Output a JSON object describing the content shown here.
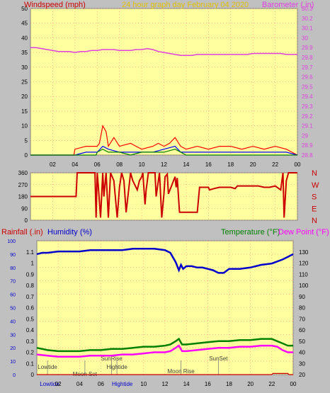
{
  "colors": {
    "plot_bg": "#ffff9f",
    "frame_bg": "#c0c0c0",
    "grid": "#ff8080",
    "tick": "#ff0000",
    "wind_gust": "#ff0000",
    "wind_speed": "#0000ff",
    "wind_avg": "#008000",
    "barometer": "#e040e0",
    "direction": "#cc0000",
    "humidity": "#0000cc",
    "temperature": "#008000",
    "dewpoint": "#ff00ff",
    "rainfall": "#cc0000",
    "title": "#e0c000",
    "panel_labels": "#404040"
  },
  "chart_data": [
    {
      "type": "line",
      "title": "24 hour graph day   February 04 2020",
      "ylabel_left": "Windspeed (mph)",
      "ylabel_right": "Barometer (.in)",
      "xlim": [
        0,
        24
      ],
      "x_tick_labels": [
        "02",
        "04",
        "06",
        "08",
        "10",
        "12",
        "14",
        "16",
        "18",
        "20",
        "22",
        "00"
      ],
      "ylim_left": [
        0,
        50
      ],
      "y_ticks_left": [
        0,
        5,
        10,
        15,
        20,
        25,
        30,
        35,
        40,
        45,
        50
      ],
      "ylim_right": [
        28.8,
        30.3
      ],
      "y_ticks_right": [
        "28.8",
        "28.9",
        "29",
        "29.1",
        "29.2",
        "29.3",
        "29.4",
        "29.5",
        "29.6",
        "29.7",
        "29.8",
        "29.9",
        "30",
        "30.1",
        "30.2",
        "30.3"
      ],
      "series": [
        {
          "id": "barometer",
          "axis": "right",
          "x": [
            0,
            0.5,
            1,
            1.5,
            2,
            2.5,
            3,
            3.5,
            4,
            4.5,
            5,
            5.5,
            6,
            6.5,
            7,
            7.5,
            8,
            8.5,
            9,
            9.5,
            10,
            10.5,
            11,
            11.5,
            12,
            12.5,
            13,
            13.5,
            14,
            14.5,
            15,
            15.5,
            16,
            16.5,
            17,
            17.5,
            18,
            18.5,
            19,
            19.5,
            20,
            20.5,
            21,
            21.5,
            22,
            22.5,
            23,
            23.5,
            24
          ],
          "y": [
            29.9,
            29.9,
            29.89,
            29.88,
            29.87,
            29.86,
            29.86,
            29.86,
            29.85,
            29.86,
            29.86,
            29.87,
            29.87,
            29.88,
            29.88,
            29.88,
            29.87,
            29.87,
            29.87,
            29.88,
            29.88,
            29.89,
            29.88,
            29.86,
            29.85,
            29.84,
            29.83,
            29.82,
            29.82,
            29.82,
            29.83,
            29.83,
            29.83,
            29.83,
            29.83,
            29.83,
            29.83,
            29.83,
            29.83,
            29.83,
            29.84,
            29.84,
            29.84,
            29.84,
            29.84,
            29.84,
            29.83,
            29.83,
            29.83
          ]
        },
        {
          "id": "wind_gust",
          "axis": "left",
          "x": [
            0,
            3.9,
            4,
            5,
            6,
            6.2,
            6.5,
            6.8,
            7,
            7.5,
            8,
            9,
            9.5,
            10,
            11,
            11.5,
            12,
            12.5,
            13,
            13.5,
            14,
            15,
            16,
            17,
            18,
            19,
            20,
            21,
            22,
            23,
            24
          ],
          "y": [
            0,
            0,
            2,
            3,
            3,
            4,
            10,
            8,
            3,
            6,
            3,
            4,
            3,
            2,
            3,
            4,
            3,
            4,
            6,
            3,
            2,
            3,
            2,
            3,
            3,
            2,
            3,
            2,
            3,
            2,
            0
          ]
        },
        {
          "id": "wind_speed",
          "axis": "left",
          "x": [
            0,
            4,
            5,
            6,
            6.5,
            7,
            8,
            9,
            10,
            11,
            12,
            13,
            13.5,
            14,
            15,
            16,
            17,
            18,
            19,
            20,
            21,
            22,
            23,
            24
          ],
          "y": [
            0,
            0,
            1,
            1,
            3,
            2,
            1,
            1,
            1,
            1,
            2,
            3,
            1,
            1,
            1,
            1,
            1,
            1,
            1,
            1,
            1,
            1,
            1,
            0
          ]
        },
        {
          "id": "wind_avg",
          "axis": "left",
          "x": [
            0,
            5.9,
            6,
            6.5,
            7,
            8,
            9,
            10,
            11,
            12,
            13,
            14,
            24
          ],
          "y": [
            0,
            0,
            1,
            2,
            1,
            1,
            0,
            1,
            1,
            1,
            2,
            0,
            0
          ]
        }
      ]
    },
    {
      "type": "line",
      "ylabel_right": "N W S E N",
      "ylim": [
        0,
        360
      ],
      "y_ticks": [
        0,
        90,
        180,
        270,
        360
      ],
      "compass_labels": [
        "N",
        "W",
        "S",
        "E",
        "N"
      ],
      "series": [
        {
          "id": "direction",
          "x": [
            0,
            3.9,
            4.1,
            4.2,
            4.8,
            5.8,
            5.9,
            6,
            6.1,
            6.3,
            6.5,
            6.6,
            6.8,
            7,
            7.2,
            7.5,
            7.8,
            8,
            8.2,
            8.4,
            8.6,
            9,
            9.2,
            9.6,
            9.8,
            10,
            10.1,
            10.3,
            10.4,
            10.6,
            11.2,
            11.3,
            11.6,
            11.8,
            12,
            12.1,
            12.3,
            12.4,
            13,
            13.1,
            13.2,
            13.4,
            13.5,
            14,
            15,
            15.2,
            16,
            16.1,
            16.5,
            17,
            17.5,
            18,
            18.4,
            18.6,
            19,
            19.5,
            20,
            20.5,
            21,
            21.5,
            22,
            22.5,
            22.7,
            22.8,
            23,
            23.2,
            23.5,
            24
          ],
          "y": [
            180,
            180,
            180,
            360,
            360,
            360,
            20,
            360,
            260,
            20,
            360,
            180,
            360,
            20,
            360,
            300,
            20,
            250,
            360,
            300,
            60,
            360,
            300,
            230,
            300,
            330,
            360,
            120,
            230,
            360,
            360,
            180,
            360,
            20,
            200,
            330,
            350,
            200,
            330,
            250,
            320,
            60,
            60,
            60,
            60,
            250,
            250,
            230,
            240,
            250,
            250,
            250,
            240,
            260,
            260,
            260,
            260,
            260,
            250,
            250,
            260,
            230,
            360,
            20,
            300,
            360,
            360,
            360
          ]
        }
      ]
    },
    {
      "type": "line",
      "ylabel_left_1": "Rainfall (.in)",
      "ylabel_left_2": "Humidity (%)",
      "ylabel_right_1": "Temperature (°F)",
      "ylabel_right_2": "Dew Point (°F)",
      "ylim_rain": [
        0,
        1.2
      ],
      "rain_ticks": [
        "0",
        "0.1",
        "0.2",
        "0.3",
        "0.4",
        "0.5",
        "0.6",
        "0.7",
        "0.8",
        "0.9",
        "1",
        "1.1"
      ],
      "ylim_hum": [
        0,
        100
      ],
      "hum_ticks": [
        0,
        10,
        20,
        30,
        40,
        50,
        60,
        70,
        80,
        90,
        100
      ],
      "ylim_temp": [
        20,
        140
      ],
      "temp_ticks": [
        20,
        30,
        40,
        50,
        60,
        70,
        80,
        90,
        100,
        110,
        120,
        130
      ],
      "series": [
        {
          "id": "humidity",
          "axis": "hum",
          "x": [
            0,
            0.5,
            1,
            2,
            3,
            4,
            5,
            6,
            7,
            8,
            9,
            10,
            11,
            12,
            12.5,
            13,
            13.3,
            13.5,
            13.7,
            14,
            14.5,
            15,
            15.5,
            16,
            16.5,
            17,
            17.5,
            18,
            19,
            20,
            21,
            22,
            23,
            23.5,
            24
          ],
          "y": [
            90,
            91,
            91,
            92,
            92,
            92,
            93,
            93,
            93,
            93,
            94,
            94,
            94,
            93,
            91,
            84,
            78,
            82,
            79,
            81,
            81,
            80,
            80,
            79,
            78,
            76,
            76,
            79,
            79,
            80,
            82,
            83,
            86,
            88,
            90
          ]
        },
        {
          "id": "temperature",
          "axis": "temp",
          "x": [
            0,
            1,
            2,
            3,
            4,
            5,
            6,
            7,
            8,
            9,
            10,
            11,
            12,
            12.5,
            13,
            13.3,
            13.6,
            14,
            15,
            16,
            17,
            18,
            19,
            20,
            21,
            22,
            22.5,
            23,
            23.5,
            24
          ],
          "y": [
            44,
            42,
            41,
            41,
            41,
            42,
            42,
            43,
            43,
            44,
            45,
            45,
            46,
            47,
            50,
            52,
            47,
            47,
            48,
            49,
            50,
            50,
            51,
            51,
            52,
            52,
            50,
            48,
            46,
            46
          ]
        },
        {
          "id": "dewpoint",
          "axis": "temp",
          "x": [
            0,
            1,
            2,
            3,
            4,
            5,
            6,
            7,
            8,
            9,
            10,
            11,
            12,
            12.5,
            13,
            13.3,
            13.6,
            14,
            15,
            16,
            17,
            18,
            19,
            20,
            21,
            22,
            22.5,
            23,
            23.5,
            24
          ],
          "y": [
            38,
            37,
            36,
            36,
            36,
            37,
            37,
            37,
            38,
            38,
            39,
            40,
            40,
            41,
            44,
            46,
            41,
            41,
            42,
            43,
            44,
            44,
            45,
            45,
            46,
            46,
            45,
            42,
            40,
            40
          ]
        },
        {
          "id": "rainfall",
          "axis": "rain",
          "x": [
            0,
            22,
            22.1,
            23.5,
            23.6,
            24
          ],
          "y": [
            0,
            0,
            0.01,
            0.01,
            0,
            0
          ]
        }
      ],
      "events": [
        {
          "label": "Lowtide",
          "x": 1
        },
        {
          "label": "Moon Set",
          "x": 4.5
        },
        {
          "label": "SunRise",
          "x": 7
        },
        {
          "label": "Hightide",
          "x": 7.5
        },
        {
          "label": "Moon Rise",
          "x": 13.5
        },
        {
          "label": "SunSet",
          "x": 17
        }
      ],
      "bottom_labels": [
        "Lowtide",
        "02",
        "04",
        "06",
        "Hightide",
        "10",
        "12",
        "14",
        "16",
        "18",
        "20",
        "22",
        "00"
      ]
    }
  ]
}
